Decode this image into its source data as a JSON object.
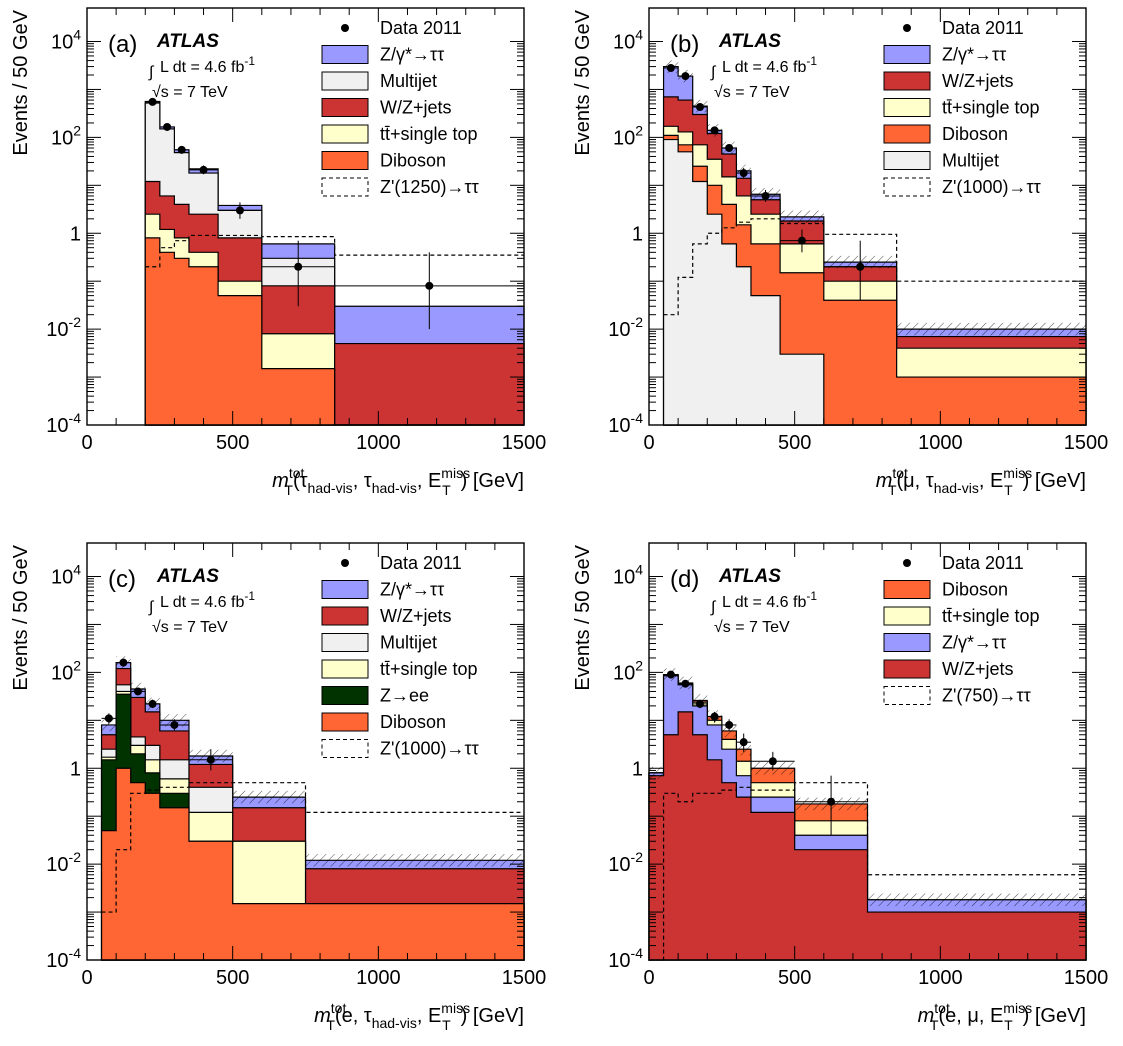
{
  "colors": {
    "ztautau": "#9999ff",
    "multijet": "#f0f0f0",
    "wzjets": "#cc3333",
    "ttbar": "#ffffcc",
    "diboson": "#ff6633",
    "zee": "#003300",
    "data": "#000000",
    "signal": "#000000"
  },
  "yaxis": {
    "label": "Events / 50 GeV",
    "ticks": [
      {
        "value": 0.0001,
        "base": "10",
        "exp": "-4"
      },
      {
        "value": 0.01,
        "base": "10",
        "exp": "-2"
      },
      {
        "value": 1,
        "base": "1",
        "exp": ""
      },
      {
        "value": 100,
        "base": "10",
        "exp": "2"
      },
      {
        "value": 10000,
        "base": "10",
        "exp": "4"
      }
    ]
  },
  "xaxis_ticks": [
    "0",
    "500",
    "1000",
    "1500"
  ],
  "atlas": {
    "label": "ATLAS",
    "lumi_prefix": "L dt = 4.6 fb",
    "lumi_sup": "-1",
    "sqrts_prefix": "s = 7 TeV",
    "integral_symbol": "∫",
    "sqrt_symbol": "√"
  },
  "chart_data": [
    {
      "type": "bar",
      "panel": "(a)",
      "stacked": true,
      "log_y": true,
      "xlim": [
        0,
        1500
      ],
      "ylim": [
        0.0001,
        50000
      ],
      "grid": false,
      "legend_position": "top-right",
      "x_edges": [
        200,
        250,
        300,
        350,
        450,
        600,
        850,
        1500
      ],
      "xlabel_parts": {
        "m": "m",
        "sup": "tot",
        "sub": "T",
        "args": "(τ",
        "a1sub": "had-vis",
        "mid": ", τ",
        "a2sub": "had-vis",
        "end": ", E",
        "esup": "miss",
        "esub": "T",
        "unit": ") [GeV]"
      },
      "legend": [
        {
          "kind": "data",
          "label": "Data 2011"
        },
        {
          "kind": "fill",
          "key": "ztautau",
          "label": "Z/γ*→ττ"
        },
        {
          "kind": "fill",
          "key": "multijet",
          "label": "Multijet"
        },
        {
          "kind": "fill",
          "key": "wzjets",
          "label": "W/Z+jets"
        },
        {
          "kind": "fill",
          "key": "ttbar",
          "label": "tt̄+single top"
        },
        {
          "kind": "fill",
          "key": "diboson",
          "label": "Diboson"
        },
        {
          "kind": "signal",
          "label": "Z'(1250)→ττ"
        }
      ],
      "stack_order": [
        "diboson",
        "ttbar",
        "wzjets",
        "multijet",
        "ztautau"
      ],
      "stack_totals": {
        "diboson": [
          0.8,
          0.4,
          0.3,
          0.2,
          0.05,
          0.0015,
          0.0001
        ],
        "ttbar": [
          2.5,
          1.2,
          0.8,
          0.4,
          0.1,
          0.008,
          0.0001
        ],
        "wzjets": [
          12,
          6,
          4,
          2.5,
          0.8,
          0.08,
          0.005
        ],
        "multijet": [
          520,
          150,
          48,
          18,
          3.0,
          0.3,
          0.005
        ],
        "ztautau": [
          560,
          165,
          55,
          22,
          3.8,
          0.6,
          0.03
        ]
      },
      "signal": [
        0.2,
        0.5,
        0.7,
        0.9,
        0.9,
        0.85,
        0.35
      ],
      "data": [
        {
          "x": 225,
          "y": 550,
          "ylo": 520,
          "yhi": 590,
          "xerr": 25
        },
        {
          "x": 275,
          "y": 165,
          "ylo": 152,
          "yhi": 180,
          "xerr": 25
        },
        {
          "x": 325,
          "y": 55,
          "ylo": 48,
          "yhi": 63,
          "xerr": 25
        },
        {
          "x": 400,
          "y": 21,
          "ylo": 17,
          "yhi": 26,
          "xerr": 50
        },
        {
          "x": 525,
          "y": 3.0,
          "ylo": 2.0,
          "yhi": 4.4,
          "xerr": 75
        },
        {
          "x": 725,
          "y": 0.2,
          "ylo": 0.03,
          "yhi": 0.7,
          "xerr": 125
        },
        {
          "x": 1175,
          "y": 0.08,
          "ylo": 0.01,
          "yhi": 0.4,
          "xerr": 325
        }
      ],
      "uncertainty_band": false
    },
    {
      "type": "bar",
      "panel": "(b)",
      "stacked": true,
      "log_y": true,
      "xlim": [
        0,
        1500
      ],
      "ylim": [
        0.0001,
        50000
      ],
      "grid": false,
      "legend_position": "top-right",
      "x_edges": [
        50,
        100,
        150,
        200,
        250,
        300,
        350,
        450,
        600,
        850,
        1500
      ],
      "xlabel_parts": {
        "m": "m",
        "sup": "tot",
        "sub": "T",
        "args": "(μ, τ",
        "a1sub": "had-vis",
        "mid": "",
        "a2sub": "",
        "end": ", E",
        "esup": "miss",
        "esub": "T",
        "unit": ") [GeV]"
      },
      "legend": [
        {
          "kind": "data",
          "label": "Data 2011"
        },
        {
          "kind": "fill",
          "key": "ztautau",
          "label": "Z/γ*→ττ"
        },
        {
          "kind": "fill",
          "key": "wzjets",
          "label": "W/Z+jets"
        },
        {
          "kind": "fill",
          "key": "ttbar",
          "label": "tt̄+single top"
        },
        {
          "kind": "fill",
          "key": "diboson",
          "label": "Diboson"
        },
        {
          "kind": "fill",
          "key": "multijet",
          "label": "Multijet"
        },
        {
          "kind": "signal",
          "label": "Z'(1000)→ττ"
        }
      ],
      "stack_order": [
        "multijet",
        "diboson",
        "ttbar",
        "wzjets",
        "ztautau"
      ],
      "stack_totals": {
        "multijet": [
          90,
          50,
          12,
          2.5,
          0.6,
          0.2,
          0.05,
          0.003,
          0.0001,
          0.0001
        ],
        "diboson": [
          110,
          70,
          25,
          10,
          4,
          1.5,
          0.6,
          0.15,
          0.04,
          0.001
        ],
        "ttbar": [
          170,
          130,
          70,
          35,
          15,
          6,
          2.5,
          0.6,
          0.1,
          0.004
        ],
        "wzjets": [
          700,
          600,
          300,
          120,
          45,
          14,
          5,
          1.8,
          0.2,
          0.007
        ],
        "ztautau": [
          3000,
          1900,
          450,
          140,
          60,
          20,
          6.5,
          2.2,
          0.25,
          0.01
        ]
      },
      "signal": [
        0.02,
        0.12,
        0.6,
        1.0,
        1.3,
        1.7,
        2.0,
        1.6,
        0.95,
        0.1
      ],
      "data": [
        {
          "x": 75,
          "y": 2800,
          "ylo": 2700,
          "yhi": 2900,
          "xerr": 25
        },
        {
          "x": 125,
          "y": 1900,
          "ylo": 1830,
          "yhi": 1980,
          "xerr": 25
        },
        {
          "x": 175,
          "y": 430,
          "ylo": 405,
          "yhi": 455,
          "xerr": 25
        },
        {
          "x": 225,
          "y": 140,
          "ylo": 128,
          "yhi": 152,
          "xerr": 25
        },
        {
          "x": 275,
          "y": 60,
          "ylo": 53,
          "yhi": 68,
          "xerr": 25
        },
        {
          "x": 325,
          "y": 18,
          "ylo": 14,
          "yhi": 23,
          "xerr": 25
        },
        {
          "x": 400,
          "y": 6,
          "ylo": 4.5,
          "yhi": 8,
          "xerr": 50
        },
        {
          "x": 525,
          "y": 0.7,
          "ylo": 0.4,
          "yhi": 1.2,
          "xerr": 75
        },
        {
          "x": 725,
          "y": 0.2,
          "ylo": 0.04,
          "yhi": 0.7,
          "xerr": 125
        }
      ],
      "uncertainty_band": true
    },
    {
      "type": "bar",
      "panel": "(c)",
      "stacked": true,
      "log_y": true,
      "xlim": [
        0,
        1500
      ],
      "ylim": [
        0.0001,
        50000
      ],
      "grid": false,
      "legend_position": "top-right",
      "x_edges": [
        50,
        100,
        150,
        200,
        250,
        350,
        500,
        750,
        1500
      ],
      "xlabel_parts": {
        "m": "m",
        "sup": "tot",
        "sub": "T",
        "args": "(e, τ",
        "a1sub": "had-vis",
        "mid": "",
        "a2sub": "",
        "end": ", E",
        "esup": "miss",
        "esub": "T",
        "unit": ") [GeV]"
      },
      "legend": [
        {
          "kind": "data",
          "label": "Data 2011"
        },
        {
          "kind": "fill",
          "key": "ztautau",
          "label": "Z/γ*→ττ"
        },
        {
          "kind": "fill",
          "key": "wzjets",
          "label": "W/Z+jets"
        },
        {
          "kind": "fill",
          "key": "multijet",
          "label": "Multijet"
        },
        {
          "kind": "fill",
          "key": "ttbar",
          "label": "tt̄+single top"
        },
        {
          "kind": "fill",
          "key": "zee",
          "label": "Z→ee"
        },
        {
          "kind": "fill",
          "key": "diboson",
          "label": "Diboson"
        },
        {
          "kind": "signal",
          "label": "Z'(1000)→ττ"
        }
      ],
      "stack_order": [
        "diboson",
        "zee",
        "ttbar",
        "multijet",
        "wzjets",
        "ztautau"
      ],
      "stack_totals": {
        "diboson": [
          0.05,
          1.0,
          0.5,
          0.3,
          0.15,
          0.03,
          0.0015,
          0.0015
        ],
        "zee": [
          1.5,
          35,
          2.0,
          0.8,
          0.3,
          0.03,
          0.0015,
          0.0015
        ],
        "ttbar": [
          1.7,
          40,
          3.0,
          1.5,
          0.6,
          0.12,
          0.03,
          0.0015
        ],
        "multijet": [
          2.5,
          55,
          4.5,
          3.0,
          1.5,
          0.4,
          0.03,
          0.0015
        ],
        "wzjets": [
          5,
          120,
          30,
          15,
          6,
          1.2,
          0.15,
          0.008
        ],
        "ztautau": [
          8,
          160,
          45,
          22,
          10,
          1.8,
          0.25,
          0.012
        ]
      },
      "signal": [
        0.001,
        0.02,
        0.3,
        0.35,
        0.4,
        0.5,
        0.5,
        0.12
      ],
      "data": [
        {
          "x": 75,
          "y": 11,
          "ylo": 8.5,
          "yhi": 14,
          "xerr": 25
        },
        {
          "x": 125,
          "y": 160,
          "ylo": 150,
          "yhi": 172,
          "xerr": 25
        },
        {
          "x": 175,
          "y": 40,
          "ylo": 34,
          "yhi": 47,
          "xerr": 25
        },
        {
          "x": 225,
          "y": 22,
          "ylo": 18,
          "yhi": 27,
          "xerr": 25
        },
        {
          "x": 300,
          "y": 8,
          "ylo": 6,
          "yhi": 10.5,
          "xerr": 50
        },
        {
          "x": 425,
          "y": 1.5,
          "ylo": 0.9,
          "yhi": 2.5,
          "xerr": 75
        }
      ],
      "uncertainty_band": true
    },
    {
      "type": "bar",
      "panel": "(d)",
      "stacked": true,
      "log_y": true,
      "xlim": [
        0,
        1500
      ],
      "ylim": [
        0.0001,
        50000
      ],
      "grid": false,
      "legend_position": "top-right",
      "x_edges": [
        0,
        50,
        100,
        150,
        200,
        250,
        300,
        350,
        500,
        750,
        1500
      ],
      "xlabel_parts": {
        "m": "m",
        "sup": "tot",
        "sub": "T",
        "args": "(e, μ",
        "a1sub": "",
        "mid": "",
        "a2sub": "",
        "end": ", E",
        "esup": "miss",
        "esub": "T",
        "unit": ") [GeV]"
      },
      "legend": [
        {
          "kind": "data",
          "label": "Data 2011"
        },
        {
          "kind": "fill",
          "key": "diboson",
          "label": "Diboson"
        },
        {
          "kind": "fill",
          "key": "ttbar",
          "label": "tt̄+single top"
        },
        {
          "kind": "fill",
          "key": "ztautau",
          "label": "Z/γ*→ττ"
        },
        {
          "kind": "fill",
          "key": "wzjets",
          "label": "W/Z+jets"
        },
        {
          "kind": "signal",
          "label": "Z'(750)→ττ"
        }
      ],
      "stack_order": [
        "wzjets",
        "ztautau",
        "ttbar",
        "diboson"
      ],
      "stack_totals": {
        "wzjets": [
          0.7,
          5,
          15,
          5,
          1.5,
          0.5,
          0.25,
          0.12,
          0.02,
          0.001
        ],
        "ztautau": [
          0.8,
          85,
          55,
          20,
          8,
          2.5,
          0.7,
          0.25,
          0.04,
          0.0018
        ],
        "ttbar": [
          0.8,
          87,
          58,
          24,
          10,
          4,
          1.4,
          0.5,
          0.08,
          0.0018
        ],
        "diboson": [
          0.8,
          90,
          60,
          26,
          12,
          6,
          2.5,
          1.0,
          0.18,
          0.0018
        ]
      },
      "signal": [
        0.0001,
        0.3,
        0.2,
        0.3,
        0.3,
        0.35,
        0.4,
        0.35,
        0.5,
        0.006
      ],
      "data": [
        {
          "x": 75,
          "y": 90,
          "ylo": 82,
          "yhi": 98,
          "xerr": 25
        },
        {
          "x": 125,
          "y": 58,
          "ylo": 51,
          "yhi": 66,
          "xerr": 25
        },
        {
          "x": 175,
          "y": 22,
          "ylo": 18,
          "yhi": 27,
          "xerr": 25
        },
        {
          "x": 225,
          "y": 12,
          "ylo": 9,
          "yhi": 15,
          "xerr": 25
        },
        {
          "x": 275,
          "y": 8,
          "ylo": 6,
          "yhi": 10.5,
          "xerr": 25
        },
        {
          "x": 325,
          "y": 3.5,
          "ylo": 2.2,
          "yhi": 5.3,
          "xerr": 25
        },
        {
          "x": 425,
          "y": 1.4,
          "ylo": 0.9,
          "yhi": 2.2,
          "xerr": 75
        },
        {
          "x": 625,
          "y": 0.2,
          "ylo": 0.04,
          "yhi": 0.7,
          "xerr": 125
        }
      ],
      "uncertainty_band": true
    }
  ]
}
